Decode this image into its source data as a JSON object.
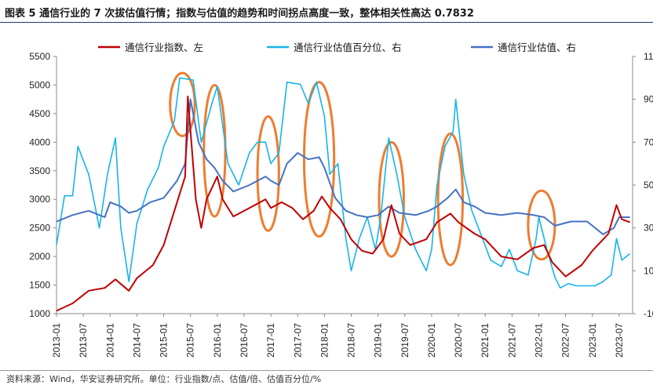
{
  "title": "图表 5 通信行业的 7 次拔估值行情；指数与估值的趋势和时间拐点高度一致，整体相关性高达 0.7832",
  "source": "资料来源：Wind，华安证券研究所。单位：行业指数/点、估值/倍、估值百分位/%",
  "colors": {
    "index": "#c00000",
    "percentile": "#17b4e8",
    "pe": "#4472c4",
    "highlight": "#ed7d31"
  },
  "chart_data": {
    "type": "line",
    "x_tick_labels": [
      "2013-01",
      "2013-07",
      "2014-01",
      "2014-07",
      "2015-01",
      "2015-07",
      "2016-01",
      "2016-07",
      "2017-01",
      "2017-07",
      "2018-01",
      "2018-07",
      "2019-01",
      "2019-07",
      "2020-01",
      "2020-07",
      "2021-01",
      "2021-07",
      "2022-01",
      "2022-07",
      "2023-01",
      "2023-07"
    ],
    "left_axis": {
      "min": 1000,
      "max": 5500,
      "ticks": [
        "1000",
        "1500",
        "2000",
        "2500",
        "3000",
        "3500",
        "4000",
        "4500",
        "5000",
        "5500"
      ]
    },
    "right_axis": {
      "min": -10,
      "max": 110,
      "ticks": [
        "-10",
        "10",
        "30",
        "50",
        "70",
        "90",
        "110"
      ]
    },
    "series": [
      {
        "name": "通信行业指数、左",
        "axis": "left",
        "points": [
          [
            2013.0,
            1050
          ],
          [
            2013.3,
            1180
          ],
          [
            2013.6,
            1400
          ],
          [
            2013.9,
            1450
          ],
          [
            2014.1,
            1600
          ],
          [
            2014.35,
            1400
          ],
          [
            2014.5,
            1620
          ],
          [
            2014.8,
            1850
          ],
          [
            2015.0,
            2200
          ],
          [
            2015.2,
            2800
          ],
          [
            2015.4,
            3400
          ],
          [
            2015.45,
            4800
          ],
          [
            2015.6,
            3000
          ],
          [
            2015.7,
            2500
          ],
          [
            2015.8,
            3000
          ],
          [
            2016.0,
            3400
          ],
          [
            2016.1,
            3000
          ],
          [
            2016.3,
            2700
          ],
          [
            2016.6,
            2850
          ],
          [
            2016.9,
            3000
          ],
          [
            2017.0,
            2850
          ],
          [
            2017.2,
            2950
          ],
          [
            2017.4,
            2850
          ],
          [
            2017.6,
            2650
          ],
          [
            2017.8,
            2800
          ],
          [
            2017.95,
            3050
          ],
          [
            2018.1,
            2850
          ],
          [
            2018.3,
            2650
          ],
          [
            2018.5,
            2300
          ],
          [
            2018.7,
            2100
          ],
          [
            2018.9,
            2050
          ],
          [
            2019.1,
            2300
          ],
          [
            2019.25,
            2900
          ],
          [
            2019.4,
            2400
          ],
          [
            2019.6,
            2200
          ],
          [
            2019.9,
            2300
          ],
          [
            2020.1,
            2600
          ],
          [
            2020.35,
            2750
          ],
          [
            2020.5,
            2600
          ],
          [
            2020.8,
            2400
          ],
          [
            2021.0,
            2300
          ],
          [
            2021.3,
            2000
          ],
          [
            2021.6,
            1950
          ],
          [
            2021.9,
            2150
          ],
          [
            2022.1,
            2200
          ],
          [
            2022.25,
            1900
          ],
          [
            2022.5,
            1650
          ],
          [
            2022.8,
            1850
          ],
          [
            2023.0,
            2100
          ],
          [
            2023.3,
            2400
          ],
          [
            2023.45,
            2900
          ],
          [
            2023.55,
            2650
          ],
          [
            2023.7,
            2600
          ]
        ]
      },
      {
        "name": "通信行业估值百分位、右",
        "axis": "right",
        "points": [
          [
            2013.0,
            22
          ],
          [
            2013.15,
            45
          ],
          [
            2013.3,
            45
          ],
          [
            2013.4,
            68
          ],
          [
            2013.6,
            55
          ],
          [
            2013.8,
            30
          ],
          [
            2013.95,
            55
          ],
          [
            2014.1,
            72
          ],
          [
            2014.2,
            30
          ],
          [
            2014.35,
            5
          ],
          [
            2014.5,
            32
          ],
          [
            2014.7,
            48
          ],
          [
            2014.9,
            58
          ],
          [
            2015.0,
            68
          ],
          [
            2015.2,
            80
          ],
          [
            2015.3,
            100
          ],
          [
            2015.55,
            99
          ],
          [
            2015.7,
            70
          ],
          [
            2015.9,
            88
          ],
          [
            2016.0,
            96
          ],
          [
            2016.2,
            60
          ],
          [
            2016.4,
            50
          ],
          [
            2016.6,
            65
          ],
          [
            2016.75,
            70
          ],
          [
            2016.9,
            70
          ],
          [
            2017.0,
            60
          ],
          [
            2017.15,
            65
          ],
          [
            2017.3,
            98
          ],
          [
            2017.55,
            97
          ],
          [
            2017.7,
            88
          ],
          [
            2017.85,
            98
          ],
          [
            2018.0,
            82
          ],
          [
            2018.1,
            55
          ],
          [
            2018.25,
            60
          ],
          [
            2018.4,
            25
          ],
          [
            2018.5,
            10
          ],
          [
            2018.65,
            25
          ],
          [
            2018.8,
            35
          ],
          [
            2018.95,
            20
          ],
          [
            2019.05,
            35
          ],
          [
            2019.2,
            72
          ],
          [
            2019.35,
            55
          ],
          [
            2019.5,
            35
          ],
          [
            2019.7,
            20
          ],
          [
            2019.9,
            10
          ],
          [
            2020.0,
            20
          ],
          [
            2020.1,
            50
          ],
          [
            2020.25,
            68
          ],
          [
            2020.4,
            75
          ],
          [
            2020.45,
            90
          ],
          [
            2020.6,
            55
          ],
          [
            2020.75,
            38
          ],
          [
            2020.95,
            25
          ],
          [
            2021.1,
            15
          ],
          [
            2021.3,
            12
          ],
          [
            2021.45,
            20
          ],
          [
            2021.6,
            10
          ],
          [
            2021.8,
            8
          ],
          [
            2021.95,
            25
          ],
          [
            2022.0,
            35
          ],
          [
            2022.15,
            20
          ],
          [
            2022.3,
            7
          ],
          [
            2022.4,
            2
          ],
          [
            2022.55,
            4
          ],
          [
            2022.7,
            3
          ],
          [
            2022.9,
            3
          ],
          [
            2023.05,
            3
          ],
          [
            2023.2,
            5
          ],
          [
            2023.35,
            8
          ],
          [
            2023.45,
            25
          ],
          [
            2023.55,
            15
          ],
          [
            2023.7,
            18
          ]
        ]
      },
      {
        "name": "通信行业估值、右",
        "axis": "right",
        "points": [
          [
            2013.0,
            33
          ],
          [
            2013.3,
            36
          ],
          [
            2013.6,
            38
          ],
          [
            2013.9,
            35
          ],
          [
            2014.0,
            42
          ],
          [
            2014.2,
            40
          ],
          [
            2014.35,
            37
          ],
          [
            2014.5,
            38
          ],
          [
            2014.75,
            42
          ],
          [
            2015.0,
            44
          ],
          [
            2015.25,
            52
          ],
          [
            2015.4,
            60
          ],
          [
            2015.5,
            90
          ],
          [
            2015.65,
            70
          ],
          [
            2015.8,
            62
          ],
          [
            2015.95,
            58
          ],
          [
            2016.1,
            52
          ],
          [
            2016.3,
            47
          ],
          [
            2016.6,
            50
          ],
          [
            2016.9,
            54
          ],
          [
            2017.0,
            52
          ],
          [
            2017.15,
            50
          ],
          [
            2017.3,
            60
          ],
          [
            2017.5,
            65
          ],
          [
            2017.7,
            62
          ],
          [
            2017.9,
            63
          ],
          [
            2018.0,
            58
          ],
          [
            2018.2,
            44
          ],
          [
            2018.4,
            38
          ],
          [
            2018.6,
            36
          ],
          [
            2018.8,
            35
          ],
          [
            2019.0,
            36
          ],
          [
            2019.2,
            40
          ],
          [
            2019.4,
            37
          ],
          [
            2019.7,
            36
          ],
          [
            2019.95,
            38
          ],
          [
            2020.1,
            40
          ],
          [
            2020.3,
            44
          ],
          [
            2020.45,
            48
          ],
          [
            2020.6,
            42
          ],
          [
            2020.8,
            40
          ],
          [
            2021.0,
            37
          ],
          [
            2021.3,
            36
          ],
          [
            2021.6,
            37
          ],
          [
            2021.9,
            36
          ],
          [
            2022.1,
            35
          ],
          [
            2022.3,
            31
          ],
          [
            2022.6,
            33
          ],
          [
            2022.9,
            33
          ],
          [
            2023.0,
            31
          ],
          [
            2023.2,
            27
          ],
          [
            2023.4,
            30
          ],
          [
            2023.5,
            35
          ],
          [
            2023.7,
            35
          ]
        ]
      }
    ],
    "highlights": [
      {
        "label": "2015",
        "cx": 2015.35,
        "cy_left": 4660,
        "rx_years": 0.23,
        "ry_left": 550
      },
      {
        "label": "2015-2016",
        "cx": 2015.95,
        "cy_left": 3850,
        "rx_years": 0.2,
        "ry_left": 1150
      },
      {
        "label": "2016-2017",
        "cx": 2016.95,
        "cy_left": 3450,
        "rx_years": 0.2,
        "ry_left": 1000
      },
      {
        "label": "2017-2018",
        "cx": 2017.9,
        "cy_left": 3700,
        "rx_years": 0.28,
        "ry_left": 1350
      },
      {
        "label": "2019",
        "cx": 2019.25,
        "cy_left": 3000,
        "rx_years": 0.23,
        "ry_left": 1000
      },
      {
        "label": "2020",
        "cx": 2020.35,
        "cy_left": 3000,
        "rx_years": 0.23,
        "ry_left": 1150
      },
      {
        "label": "2022",
        "cx": 2022.05,
        "cy_left": 2550,
        "rx_years": 0.25,
        "ry_left": 600
      }
    ]
  }
}
